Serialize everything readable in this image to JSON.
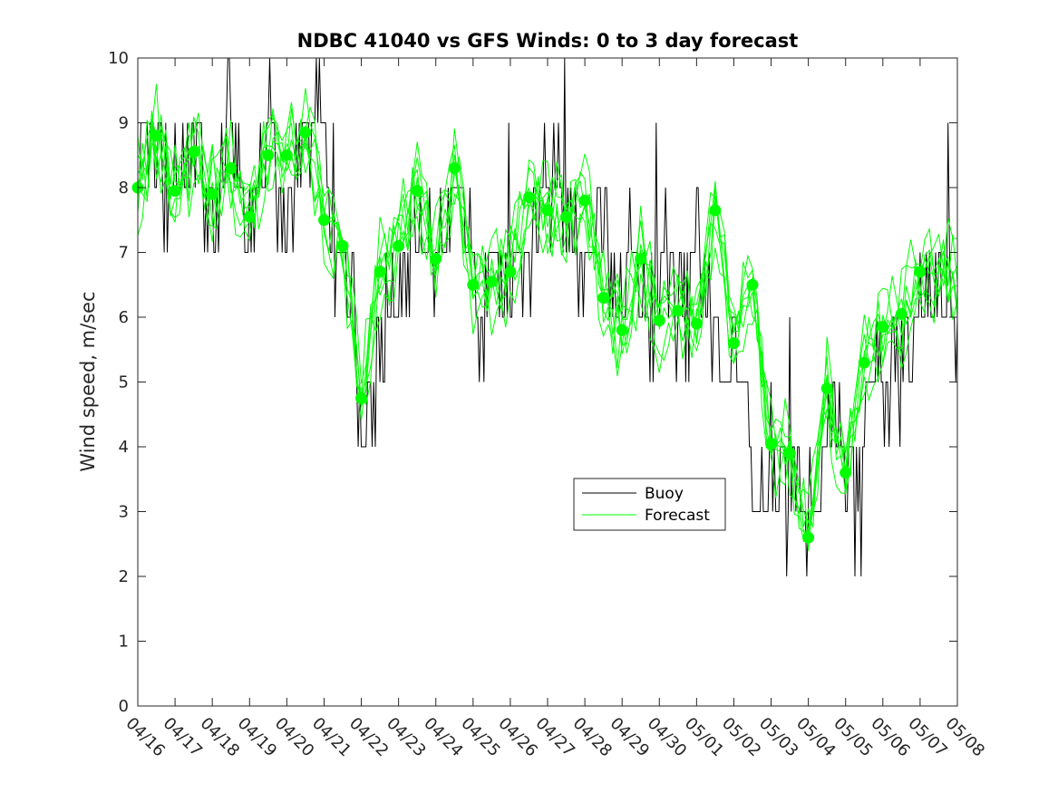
{
  "chart_data": {
    "type": "line",
    "title": "NDBC 41040 vs GFS Winds: 0 to 3 day forecast",
    "xlabel": "",
    "ylabel": "Wind speed, m/sec",
    "x_tick_labels": [
      "04/16",
      "04/17",
      "04/18",
      "04/19",
      "04/20",
      "04/21",
      "04/22",
      "04/23",
      "04/24",
      "04/25",
      "04/26",
      "04/27",
      "04/28",
      "04/29",
      "04/30",
      "05/01",
      "05/02",
      "05/03",
      "05/04",
      "05/05",
      "05/06",
      "05/07",
      "05/08"
    ],
    "y_tick_labels": [
      "0",
      "1",
      "2",
      "3",
      "4",
      "5",
      "6",
      "7",
      "8",
      "9",
      "10"
    ],
    "ylim": [
      0,
      10
    ],
    "grid": false,
    "legend": {
      "position": "center-right",
      "entries": [
        "Buoy",
        "Forecast"
      ]
    },
    "colors": {
      "buoy": "#000000",
      "forecast": "#00ff00"
    },
    "series": [
      {
        "name": "Buoy",
        "x_unit": "days after 04/16",
        "x": [
          0,
          0.25,
          0.5,
          0.75,
          1,
          1.25,
          1.5,
          1.75,
          2,
          2.25,
          2.5,
          2.75,
          3,
          3.25,
          3.5,
          3.75,
          4,
          4.25,
          4.5,
          4.75,
          5,
          5.25,
          5.5,
          5.75,
          6,
          6.25,
          6.5,
          6.75,
          7,
          7.25,
          7.5,
          7.75,
          8,
          8.25,
          8.5,
          8.75,
          9,
          9.25,
          9.5,
          9.75,
          10,
          10.25,
          10.5,
          10.75,
          11,
          11.25,
          11.5,
          11.75,
          12,
          12.25,
          12.5,
          12.75,
          13,
          13.25,
          13.5,
          13.75,
          14,
          14.25,
          14.5,
          14.75,
          15,
          15.25,
          15.5,
          15.75,
          16,
          16.25,
          16.5,
          16.75,
          17,
          17.25,
          17.5,
          17.75,
          18,
          18.25,
          18.5,
          18.75,
          19,
          19.25,
          19.5,
          19.75,
          20,
          20.25,
          20.5,
          20.75,
          21,
          21.25,
          21.5,
          21.75,
          22
        ],
        "values": [
          8,
          9,
          8.5,
          8,
          8,
          8.5,
          9,
          8,
          7.5,
          8.5,
          9,
          8,
          7.5,
          8.5,
          9,
          8,
          7,
          8.5,
          9,
          9.5,
          8,
          7,
          6.5,
          6,
          4.5,
          4.5,
          5.5,
          6.5,
          6.5,
          7,
          7.5,
          7,
          7,
          7.5,
          8,
          8,
          6.5,
          5.5,
          7,
          6,
          6.5,
          7,
          7,
          7.5,
          8,
          8,
          7.5,
          7,
          6.5,
          7,
          7.5,
          6.5,
          6.5,
          7,
          6.5,
          6,
          6.5,
          7,
          6,
          6,
          7,
          6.5,
          5.5,
          5,
          5.5,
          5,
          4,
          3.5,
          4,
          3.5,
          3,
          3.5,
          3,
          3.5,
          4.5,
          4.5,
          4,
          3,
          4.5,
          5,
          5,
          5,
          5,
          5.5,
          6,
          6.5,
          6.5,
          6.5,
          6
        ]
      },
      {
        "name": "Forecast",
        "x_unit": "days after 04/16",
        "x": [
          0,
          0.5,
          1,
          1.5,
          2,
          2.5,
          3,
          3.5,
          4,
          4.5,
          5,
          5.5,
          6,
          6.5,
          7,
          7.5,
          8,
          8.5,
          9,
          9.5,
          10,
          10.5,
          11,
          11.5,
          12,
          12.5,
          13,
          13.5,
          14,
          14.5,
          15,
          15.5,
          16,
          16.5,
          17,
          17.5,
          18,
          18.5,
          19,
          19.5,
          20,
          20.5,
          21
        ],
        "values": [
          8.0,
          8.8,
          7.95,
          8.55,
          7.9,
          8.3,
          7.55,
          8.5,
          8.5,
          8.85,
          7.5,
          7.1,
          4.75,
          6.7,
          7.1,
          7.95,
          6.9,
          8.3,
          6.5,
          6.55,
          6.7,
          7.85,
          7.65,
          7.55,
          7.8,
          6.3,
          5.8,
          6.9,
          5.95,
          6.1,
          5.9,
          7.65,
          5.6,
          6.5,
          4.05,
          3.9,
          2.6,
          4.9,
          3.6,
          5.3,
          5.85,
          6.05,
          6.7
        ]
      }
    ]
  }
}
